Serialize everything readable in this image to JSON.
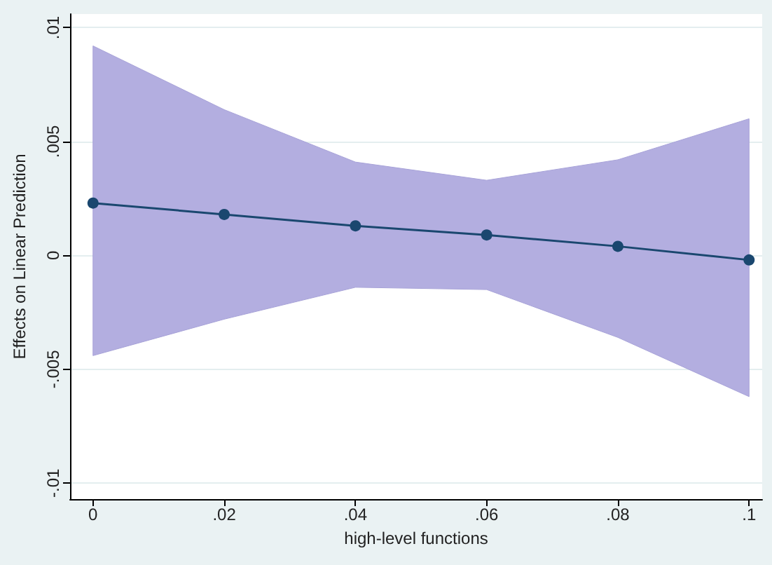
{
  "chart_data": {
    "type": "line",
    "xlabel": "high-level functions",
    "ylabel": "Effects on Linear Prediction",
    "x": [
      0,
      0.02,
      0.04,
      0.06,
      0.08,
      0.1
    ],
    "series": [
      {
        "color": "#1a476f",
        "values": [
          0.0023,
          0.0018,
          0.0013,
          0.0009,
          0.0004,
          -0.0002
        ],
        "lower": [
          -0.0044,
          -0.0028,
          -0.0014,
          -0.0015,
          -0.0036,
          -0.0062
        ],
        "upper": [
          0.0092,
          0.0064,
          0.0041,
          0.0033,
          0.0042,
          0.006
        ]
      }
    ],
    "xlim": [
      -0.0035,
      0.102
    ],
    "ylim": [
      -0.0107,
      0.0106
    ],
    "xticks": [
      0,
      {
        "value": 0.02,
        "label": ".02"
      },
      {
        "value": 0.04,
        "label": ".04"
      },
      {
        "value": 0.06,
        "label": ".06"
      },
      {
        "value": 0.08,
        "label": ".08"
      },
      {
        "value": 0.1,
        "label": ".1"
      }
    ],
    "yticks": [
      {
        "value": -0.01,
        "label": "-.01"
      },
      {
        "value": -0.005,
        "label": "-.005"
      },
      0,
      {
        "value": 0.005,
        "label": ".005"
      },
      {
        "value": 0.01,
        "label": ".01"
      }
    ],
    "grid": "y",
    "marker": "circle",
    "line_style": "solid"
  }
}
